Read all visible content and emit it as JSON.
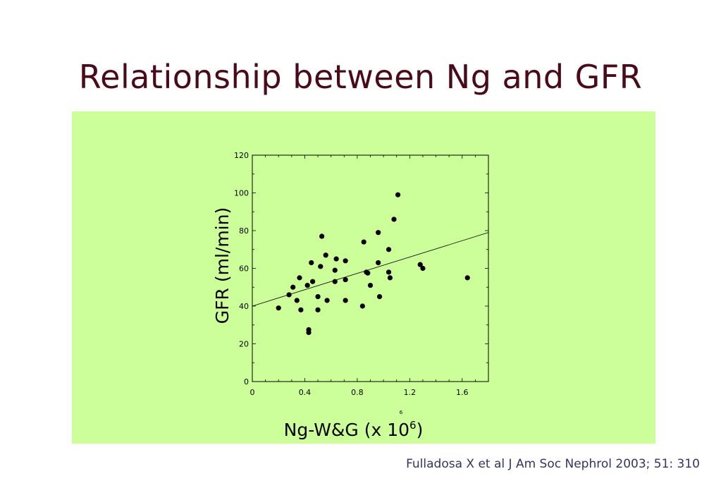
{
  "slide": {
    "title": "Relationship between Ng and GFR",
    "citation": "Fulladosa X et al J Am Soc Nephrol 2003; 51: 310",
    "panel_color": "#ccff99",
    "title_color": "#4a0a1a"
  },
  "chart_data": {
    "type": "scatter",
    "title": "",
    "xlabel": "Ng-W&G (x 10",
    "xlabel_superscript": "6",
    "xlabel_close": ")",
    "x_axis_exponent": "6",
    "ylabel": "GFR (ml/min)",
    "xlim": [
      0,
      1.8
    ],
    "ylim": [
      0,
      120
    ],
    "x_ticks": [
      0,
      0.4,
      0.8,
      1.2,
      1.6
    ],
    "x_tick_labels": [
      "0",
      "0.4",
      "0.8",
      "1.2",
      "1.6"
    ],
    "y_ticks": [
      0,
      20,
      40,
      60,
      80,
      100,
      120
    ],
    "y_tick_labels": [
      "0",
      "20",
      "40",
      "60",
      "80",
      "100",
      "120"
    ],
    "grid": false,
    "trendline": {
      "x": [
        0,
        1.8
      ],
      "y": [
        40,
        79
      ]
    },
    "points": [
      {
        "x": 0.2,
        "y": 39
      },
      {
        "x": 0.28,
        "y": 46
      },
      {
        "x": 0.31,
        "y": 50
      },
      {
        "x": 0.34,
        "y": 43
      },
      {
        "x": 0.36,
        "y": 55
      },
      {
        "x": 0.37,
        "y": 38
      },
      {
        "x": 0.42,
        "y": 51
      },
      {
        "x": 0.43,
        "y": 26
      },
      {
        "x": 0.43,
        "y": 27.5
      },
      {
        "x": 0.45,
        "y": 63
      },
      {
        "x": 0.46,
        "y": 53
      },
      {
        "x": 0.5,
        "y": 38
      },
      {
        "x": 0.5,
        "y": 45
      },
      {
        "x": 0.52,
        "y": 61
      },
      {
        "x": 0.53,
        "y": 77
      },
      {
        "x": 0.56,
        "y": 67
      },
      {
        "x": 0.57,
        "y": 43
      },
      {
        "x": 0.63,
        "y": 53
      },
      {
        "x": 0.63,
        "y": 59
      },
      {
        "x": 0.64,
        "y": 65
      },
      {
        "x": 0.71,
        "y": 64
      },
      {
        "x": 0.71,
        "y": 54
      },
      {
        "x": 0.71,
        "y": 43
      },
      {
        "x": 0.85,
        "y": 74
      },
      {
        "x": 0.84,
        "y": 40
      },
      {
        "x": 0.87,
        "y": 58
      },
      {
        "x": 0.88,
        "y": 57.5
      },
      {
        "x": 0.9,
        "y": 51
      },
      {
        "x": 0.96,
        "y": 79
      },
      {
        "x": 0.96,
        "y": 63
      },
      {
        "x": 0.97,
        "y": 45
      },
      {
        "x": 1.04,
        "y": 70
      },
      {
        "x": 1.04,
        "y": 58
      },
      {
        "x": 1.05,
        "y": 55
      },
      {
        "x": 1.08,
        "y": 86
      },
      {
        "x": 1.11,
        "y": 99
      },
      {
        "x": 1.28,
        "y": 62
      },
      {
        "x": 1.3,
        "y": 60
      },
      {
        "x": 1.64,
        "y": 55
      }
    ]
  }
}
